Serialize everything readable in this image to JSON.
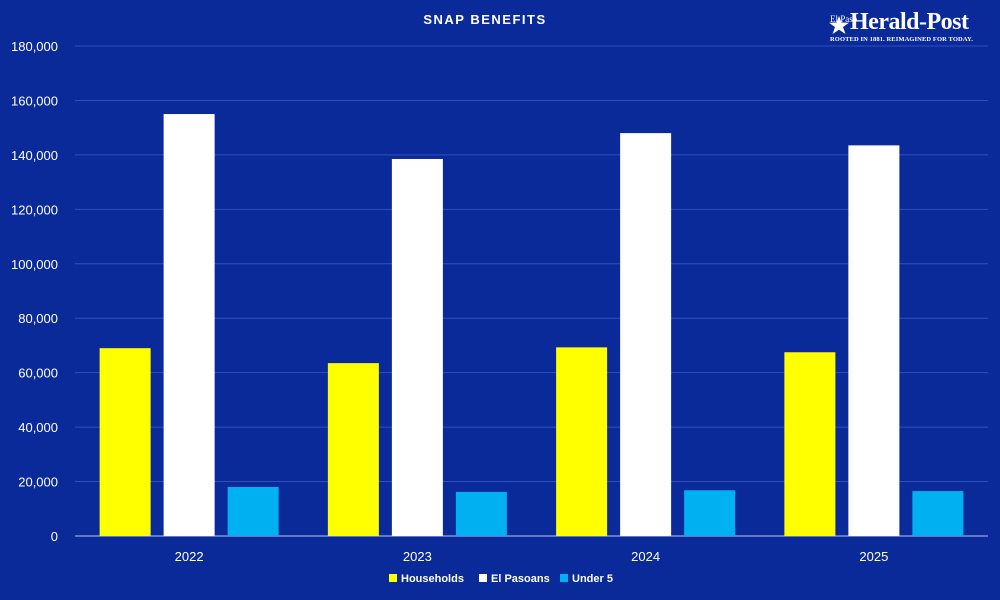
{
  "logo": {
    "small_text": "El Paso",
    "main_text": "Herald-Post",
    "tagline": "ROOTED IN 1881. REIMAGINED FOR TODAY."
  },
  "colors": {
    "background": "#0a2a9a",
    "households": "#ffff00",
    "el_pasoans": "#ffffff",
    "under5": "#00b0f0"
  },
  "chart_data": {
    "type": "bar",
    "title": "SNAP BENEFITS",
    "categories": [
      "2022",
      "2023",
      "2024",
      "2025"
    ],
    "series": [
      {
        "name": "Households",
        "values": [
          69000,
          63500,
          69300,
          67500
        ]
      },
      {
        "name": "El Pasoans",
        "values": [
          155000,
          138500,
          148000,
          143500
        ]
      },
      {
        "name": "Under 5",
        "values": [
          18000,
          16200,
          16800,
          16500
        ]
      }
    ],
    "yticks": [
      "0",
      "20,000",
      "40,000",
      "60,000",
      "80,000",
      "100,000",
      "120,000",
      "140,000",
      "160,000",
      "180,000"
    ],
    "ylim": [
      0,
      180000
    ],
    "grid": true,
    "legend": "bottom-center"
  }
}
